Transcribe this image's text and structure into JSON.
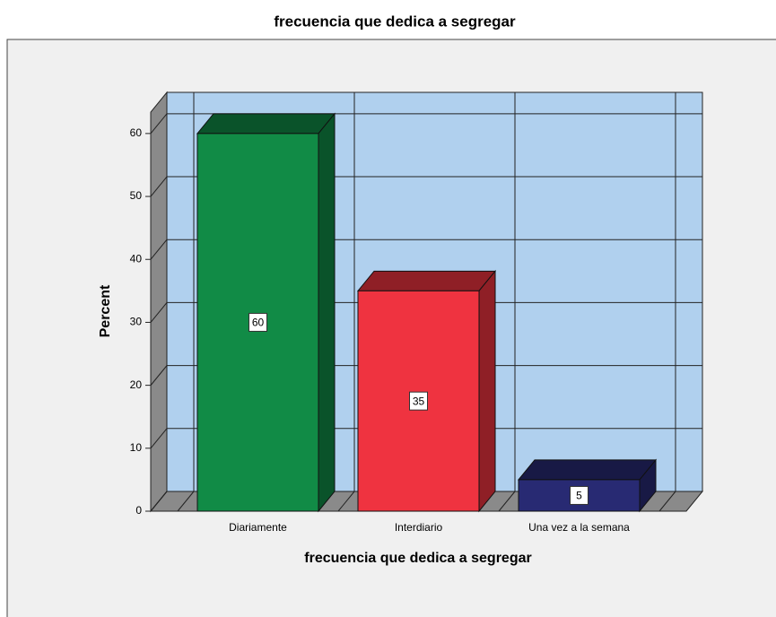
{
  "chart_data": {
    "type": "bar",
    "title": "frecuencia que dedica a segregar",
    "x_label": "frecuencia que dedica a segregar",
    "y_label": "Percent",
    "categories": [
      "Diariamente",
      "Interdiario",
      "Una vez a la semana"
    ],
    "values": [
      60,
      35,
      5
    ],
    "colors": [
      "#118b46",
      "#ef3340",
      "#282a73"
    ],
    "ylim": [
      0,
      63.4
    ],
    "yticks": [
      0,
      10,
      20,
      30,
      40,
      50,
      60
    ],
    "grid": true
  }
}
